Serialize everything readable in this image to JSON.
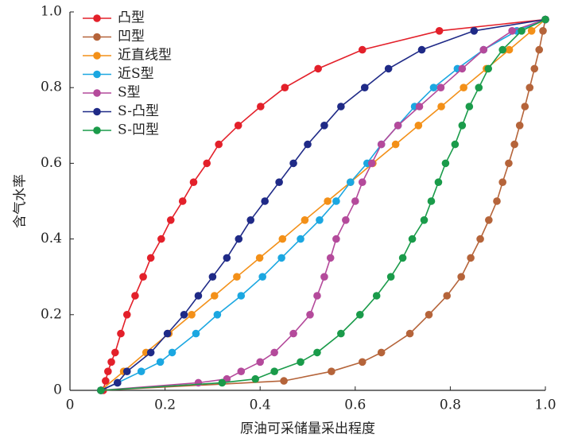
{
  "chart_data": {
    "type": "line",
    "xlabel": "原油可采储量采出程度",
    "ylabel": "含气水率",
    "xlim": [
      0,
      1
    ],
    "ylim": [
      0,
      1
    ],
    "xticks": [
      0,
      0.2,
      0.4,
      0.6,
      0.8,
      {
        "value": 1,
        "label": "1.0"
      }
    ],
    "yticks": [
      0,
      0.2,
      0.4,
      0.6,
      0.8,
      {
        "value": 1,
        "label": "1.0"
      }
    ],
    "legend": "upper left",
    "series": [
      {
        "name": "凸型",
        "color": "#e3202a",
        "x": [
          0.07,
          0.075,
          0.08,
          0.087,
          0.095,
          0.107,
          0.12,
          0.137,
          0.154,
          0.17,
          0.192,
          0.212,
          0.237,
          0.26,
          0.288,
          0.313,
          0.354,
          0.401,
          0.452,
          0.522,
          0.615,
          0.777,
          1
        ],
        "values": [
          0,
          0.025,
          0.05,
          0.075,
          0.1,
          0.15,
          0.2,
          0.25,
          0.3,
          0.35,
          0.4,
          0.45,
          0.5,
          0.55,
          0.6,
          0.65,
          0.7,
          0.75,
          0.8,
          0.85,
          0.9,
          0.95,
          0.98
        ]
      },
      {
        "name": "凹型",
        "color": "#b5643a",
        "x": [
          0.065,
          0.45,
          0.55,
          0.615,
          0.655,
          0.715,
          0.755,
          0.793,
          0.823,
          0.843,
          0.863,
          0.881,
          0.898,
          0.91,
          0.923,
          0.935,
          0.946,
          0.957,
          0.967,
          0.977,
          0.987,
          0.995,
          1
        ],
        "values": [
          0,
          0.025,
          0.05,
          0.075,
          0.1,
          0.15,
          0.2,
          0.25,
          0.3,
          0.35,
          0.4,
          0.45,
          0.5,
          0.55,
          0.6,
          0.65,
          0.7,
          0.75,
          0.8,
          0.85,
          0.9,
          0.95,
          0.98
        ]
      },
      {
        "name": "近直线型",
        "color": "#f39018",
        "x": [
          0.065,
          0.113,
          0.16,
          0.208,
          0.256,
          0.304,
          0.351,
          0.399,
          0.447,
          0.494,
          0.542,
          0.59,
          0.637,
          0.685,
          0.733,
          0.781,
          0.828,
          0.876,
          0.924,
          0.971,
          1
        ],
        "values": [
          0,
          0.05,
          0.1,
          0.15,
          0.2,
          0.25,
          0.3,
          0.35,
          0.4,
          0.45,
          0.5,
          0.55,
          0.6,
          0.65,
          0.7,
          0.75,
          0.8,
          0.85,
          0.9,
          0.95,
          0.98
        ]
      },
      {
        "name": "近S型",
        "color": "#1ba7e1",
        "x": [
          0.065,
          0.1,
          0.15,
          0.19,
          0.215,
          0.265,
          0.31,
          0.36,
          0.405,
          0.445,
          0.485,
          0.525,
          0.56,
          0.59,
          0.625,
          0.655,
          0.69,
          0.725,
          0.765,
          0.815,
          0.87,
          0.94,
          1
        ],
        "values": [
          0,
          0.02,
          0.05,
          0.075,
          0.1,
          0.15,
          0.2,
          0.25,
          0.3,
          0.35,
          0.4,
          0.45,
          0.5,
          0.55,
          0.6,
          0.65,
          0.7,
          0.75,
          0.8,
          0.85,
          0.9,
          0.95,
          0.98
        ]
      },
      {
        "name": "S型",
        "color": "#b44a9b",
        "x": [
          0.065,
          0.27,
          0.33,
          0.36,
          0.4,
          0.43,
          0.47,
          0.505,
          0.52,
          0.535,
          0.548,
          0.56,
          0.58,
          0.6,
          0.615,
          0.635,
          0.655,
          0.69,
          0.735,
          0.78,
          0.825,
          0.87,
          0.93,
          1
        ],
        "values": [
          0,
          0.02,
          0.03,
          0.05,
          0.075,
          0.1,
          0.15,
          0.2,
          0.25,
          0.3,
          0.35,
          0.4,
          0.45,
          0.5,
          0.55,
          0.6,
          0.65,
          0.7,
          0.75,
          0.8,
          0.85,
          0.9,
          0.95,
          0.98
        ]
      },
      {
        "name": "S-凸型",
        "color": "#1f2a87",
        "x": [
          0.065,
          0.1,
          0.12,
          0.17,
          0.205,
          0.24,
          0.27,
          0.3,
          0.33,
          0.355,
          0.38,
          0.41,
          0.44,
          0.47,
          0.5,
          0.535,
          0.57,
          0.62,
          0.67,
          0.74,
          0.85,
          1
        ],
        "values": [
          0,
          0.02,
          0.05,
          0.1,
          0.15,
          0.2,
          0.25,
          0.3,
          0.35,
          0.4,
          0.45,
          0.5,
          0.55,
          0.6,
          0.65,
          0.7,
          0.75,
          0.8,
          0.85,
          0.9,
          0.95,
          0.98
        ]
      },
      {
        "name": "S-凹型",
        "color": "#1a9b4a",
        "x": [
          0.065,
          0.32,
          0.39,
          0.43,
          0.485,
          0.52,
          0.57,
          0.61,
          0.645,
          0.675,
          0.7,
          0.72,
          0.745,
          0.76,
          0.775,
          0.79,
          0.81,
          0.825,
          0.84,
          0.86,
          0.88,
          0.91,
          0.95,
          1
        ],
        "values": [
          0,
          0.02,
          0.03,
          0.05,
          0.075,
          0.1,
          0.15,
          0.2,
          0.25,
          0.3,
          0.35,
          0.4,
          0.45,
          0.5,
          0.55,
          0.6,
          0.65,
          0.7,
          0.75,
          0.8,
          0.85,
          0.9,
          0.95,
          0.98
        ]
      }
    ]
  }
}
